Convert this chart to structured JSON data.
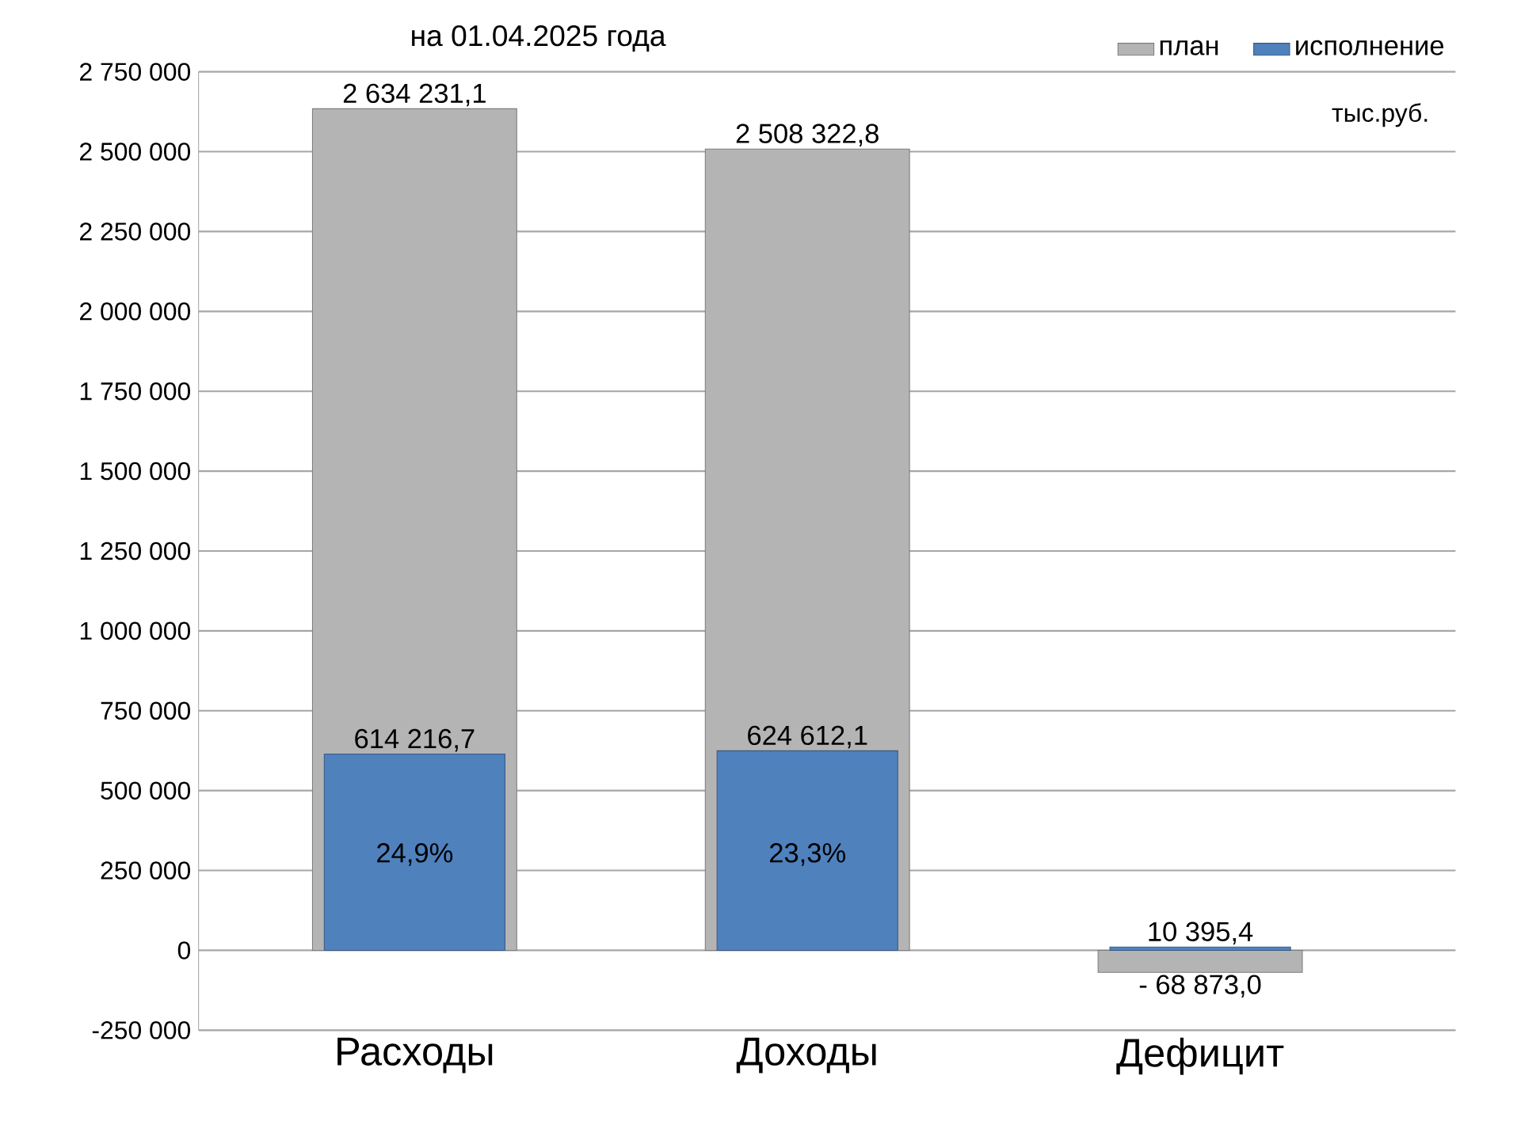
{
  "chart_data": {
    "type": "bar",
    "title": "на 01.04.2025 года",
    "categories": [
      "Расходы",
      "Доходы",
      "Дефицит"
    ],
    "series": [
      {
        "name": "план",
        "color": "#b4b4b4",
        "values": [
          2634231.1,
          2508322.8,
          -68873.0
        ],
        "value_labels": [
          "2 634 231,1",
          "2 508 322,8",
          "- 68 873,0"
        ]
      },
      {
        "name": "исполнение",
        "color": "#4f81bd",
        "values": [
          614216.7,
          624612.1,
          10395.4
        ],
        "value_labels": [
          "614 216,7",
          "624 612,1",
          "10 395,4"
        ]
      }
    ],
    "ylim": [
      -250000,
      2750000
    ],
    "yticks": [
      {
        "value": -250000,
        "label": "-250 000"
      },
      0,
      {
        "value": 250000,
        "label": "250 000"
      },
      {
        "value": 500000,
        "label": "500 000"
      },
      {
        "value": 750000,
        "label": "750 000"
      },
      {
        "value": 1000000,
        "label": "1 000 000"
      },
      {
        "value": 1250000,
        "label": "1 250 000"
      },
      {
        "value": 1500000,
        "label": "1 500 000"
      },
      {
        "value": 1750000,
        "label": "1 750 000"
      },
      {
        "value": 2000000,
        "label": "2 000 000"
      },
      {
        "value": 2250000,
        "label": "2 250 000"
      },
      {
        "value": 2500000,
        "label": "2 500 000"
      },
      {
        "value": 2750000,
        "label": "2 750 000"
      }
    ],
    "grid": "y",
    "legend": "top right",
    "annotations": [
      "тыс.руб.",
      "24,9%",
      "23,3%"
    ]
  }
}
